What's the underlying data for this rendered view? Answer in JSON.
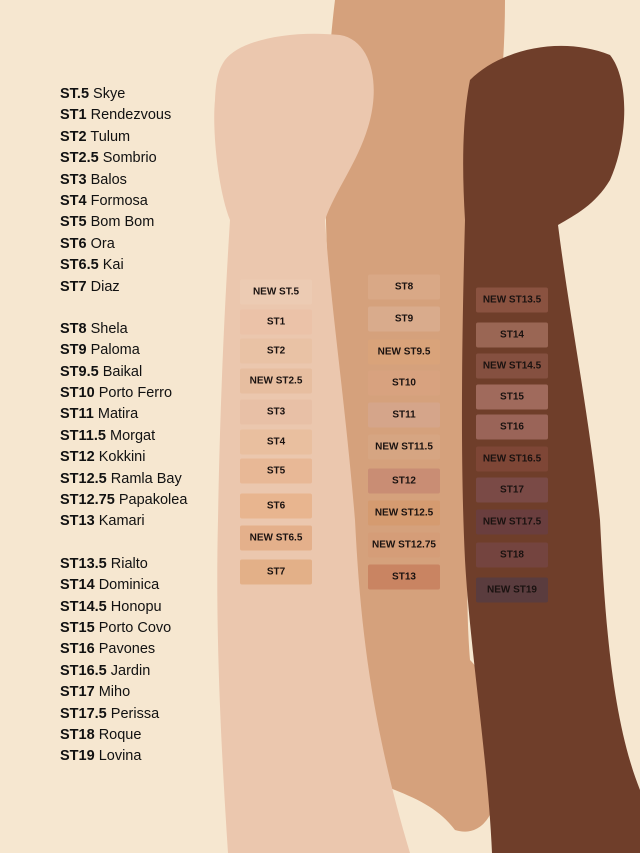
{
  "shade_list": [
    {
      "code": "ST.5",
      "name": "Skye"
    },
    {
      "code": "ST1",
      "name": "Rendezvous"
    },
    {
      "code": "ST2",
      "name": "Tulum"
    },
    {
      "code": "ST2.5",
      "name": "Sombrio"
    },
    {
      "code": "ST3",
      "name": "Balos"
    },
    {
      "code": "ST4",
      "name": "Formosa"
    },
    {
      "code": "ST5",
      "name": "Bom Bom"
    },
    {
      "code": "ST6",
      "name": "Ora"
    },
    {
      "code": "ST6.5",
      "name": "Kai"
    },
    {
      "code": "ST7",
      "name": "Diaz"
    },
    {
      "code": "ST8",
      "name": "Shela"
    },
    {
      "code": "ST9",
      "name": "Paloma"
    },
    {
      "code": "ST9.5",
      "name": "Baikal"
    },
    {
      "code": "ST10",
      "name": "Porto Ferro"
    },
    {
      "code": "ST11",
      "name": "Matira"
    },
    {
      "code": "ST11.5",
      "name": "Morgat"
    },
    {
      "code": "ST12",
      "name": "Kokkini"
    },
    {
      "code": "ST12.5",
      "name": "Ramla Bay"
    },
    {
      "code": "ST12.75",
      "name": "Papakolea"
    },
    {
      "code": "ST13",
      "name": "Kamari"
    },
    {
      "code": "ST13.5",
      "name": "Rialto"
    },
    {
      "code": "ST14",
      "name": "Dominica"
    },
    {
      "code": "ST14.5",
      "name": "Honopu"
    },
    {
      "code": "ST15",
      "name": "Porto Covo"
    },
    {
      "code": "ST16",
      "name": "Pavones"
    },
    {
      "code": "ST16.5",
      "name": "Jardin"
    },
    {
      "code": "ST17",
      "name": "Miho"
    },
    {
      "code": "ST17.5",
      "name": "Perissa"
    },
    {
      "code": "ST18",
      "name": "Roque"
    },
    {
      "code": "ST19",
      "name": "Lovina"
    }
  ],
  "swatches": {
    "light_arm": [
      {
        "label": "NEW ST.5",
        "color": "#eccbb3"
      },
      {
        "label": "ST1",
        "color": "#ebc2a8"
      },
      {
        "label": "ST2",
        "color": "#e9c2a5"
      },
      {
        "label": "NEW ST2.5",
        "color": "#e7bea0"
      },
      {
        "label": "ST3",
        "color": "#e8c0a6"
      },
      {
        "label": "ST4",
        "color": "#e9bf9f"
      },
      {
        "label": "ST5",
        "color": "#e8b896"
      },
      {
        "label": "ST6",
        "color": "#e8b58f"
      },
      {
        "label": "NEW ST6.5",
        "color": "#e4b08b"
      },
      {
        "label": "ST7",
        "color": "#e3b088"
      }
    ],
    "medium_arm": [
      {
        "label": "ST8",
        "color": "#d9a886"
      },
      {
        "label": "ST9",
        "color": "#d9ab8c"
      },
      {
        "label": "NEW ST9.5",
        "color": "#d9a37a"
      },
      {
        "label": "ST10",
        "color": "#d8a27f"
      },
      {
        "label": "ST11",
        "color": "#d5a58a"
      },
      {
        "label": "NEW ST11.5",
        "color": "#d6a582"
      },
      {
        "label": "ST12",
        "color": "#c98d74"
      },
      {
        "label": "NEW ST12.5",
        "color": "#d59b70"
      },
      {
        "label": "NEW ST12.75",
        "color": "#d59d78"
      },
      {
        "label": "ST13",
        "color": "#c98462"
      }
    ],
    "dark_arm": [
      {
        "label": "NEW ST13.5",
        "color": "#8a5240"
      },
      {
        "label": "ST14",
        "color": "#9a6654"
      },
      {
        "label": "NEW ST14.5",
        "color": "#855040"
      },
      {
        "label": "ST15",
        "color": "#a06a5c"
      },
      {
        "label": "ST16",
        "color": "#9a6458"
      },
      {
        "label": "NEW ST16.5",
        "color": "#7e4636"
      },
      {
        "label": "ST17",
        "color": "#7a4a46"
      },
      {
        "label": "NEW ST17.5",
        "color": "#6a3e3e"
      },
      {
        "label": "ST18",
        "color": "#74443f"
      },
      {
        "label": "NEW ST19",
        "color": "#5a3c3e"
      }
    ]
  },
  "colors": {
    "background": "#f6e7d0",
    "light_skin": "#ebc7ae",
    "medium_skin": "#d5a17c",
    "dark_skin": "#6f3e2a",
    "text": "#111111"
  }
}
